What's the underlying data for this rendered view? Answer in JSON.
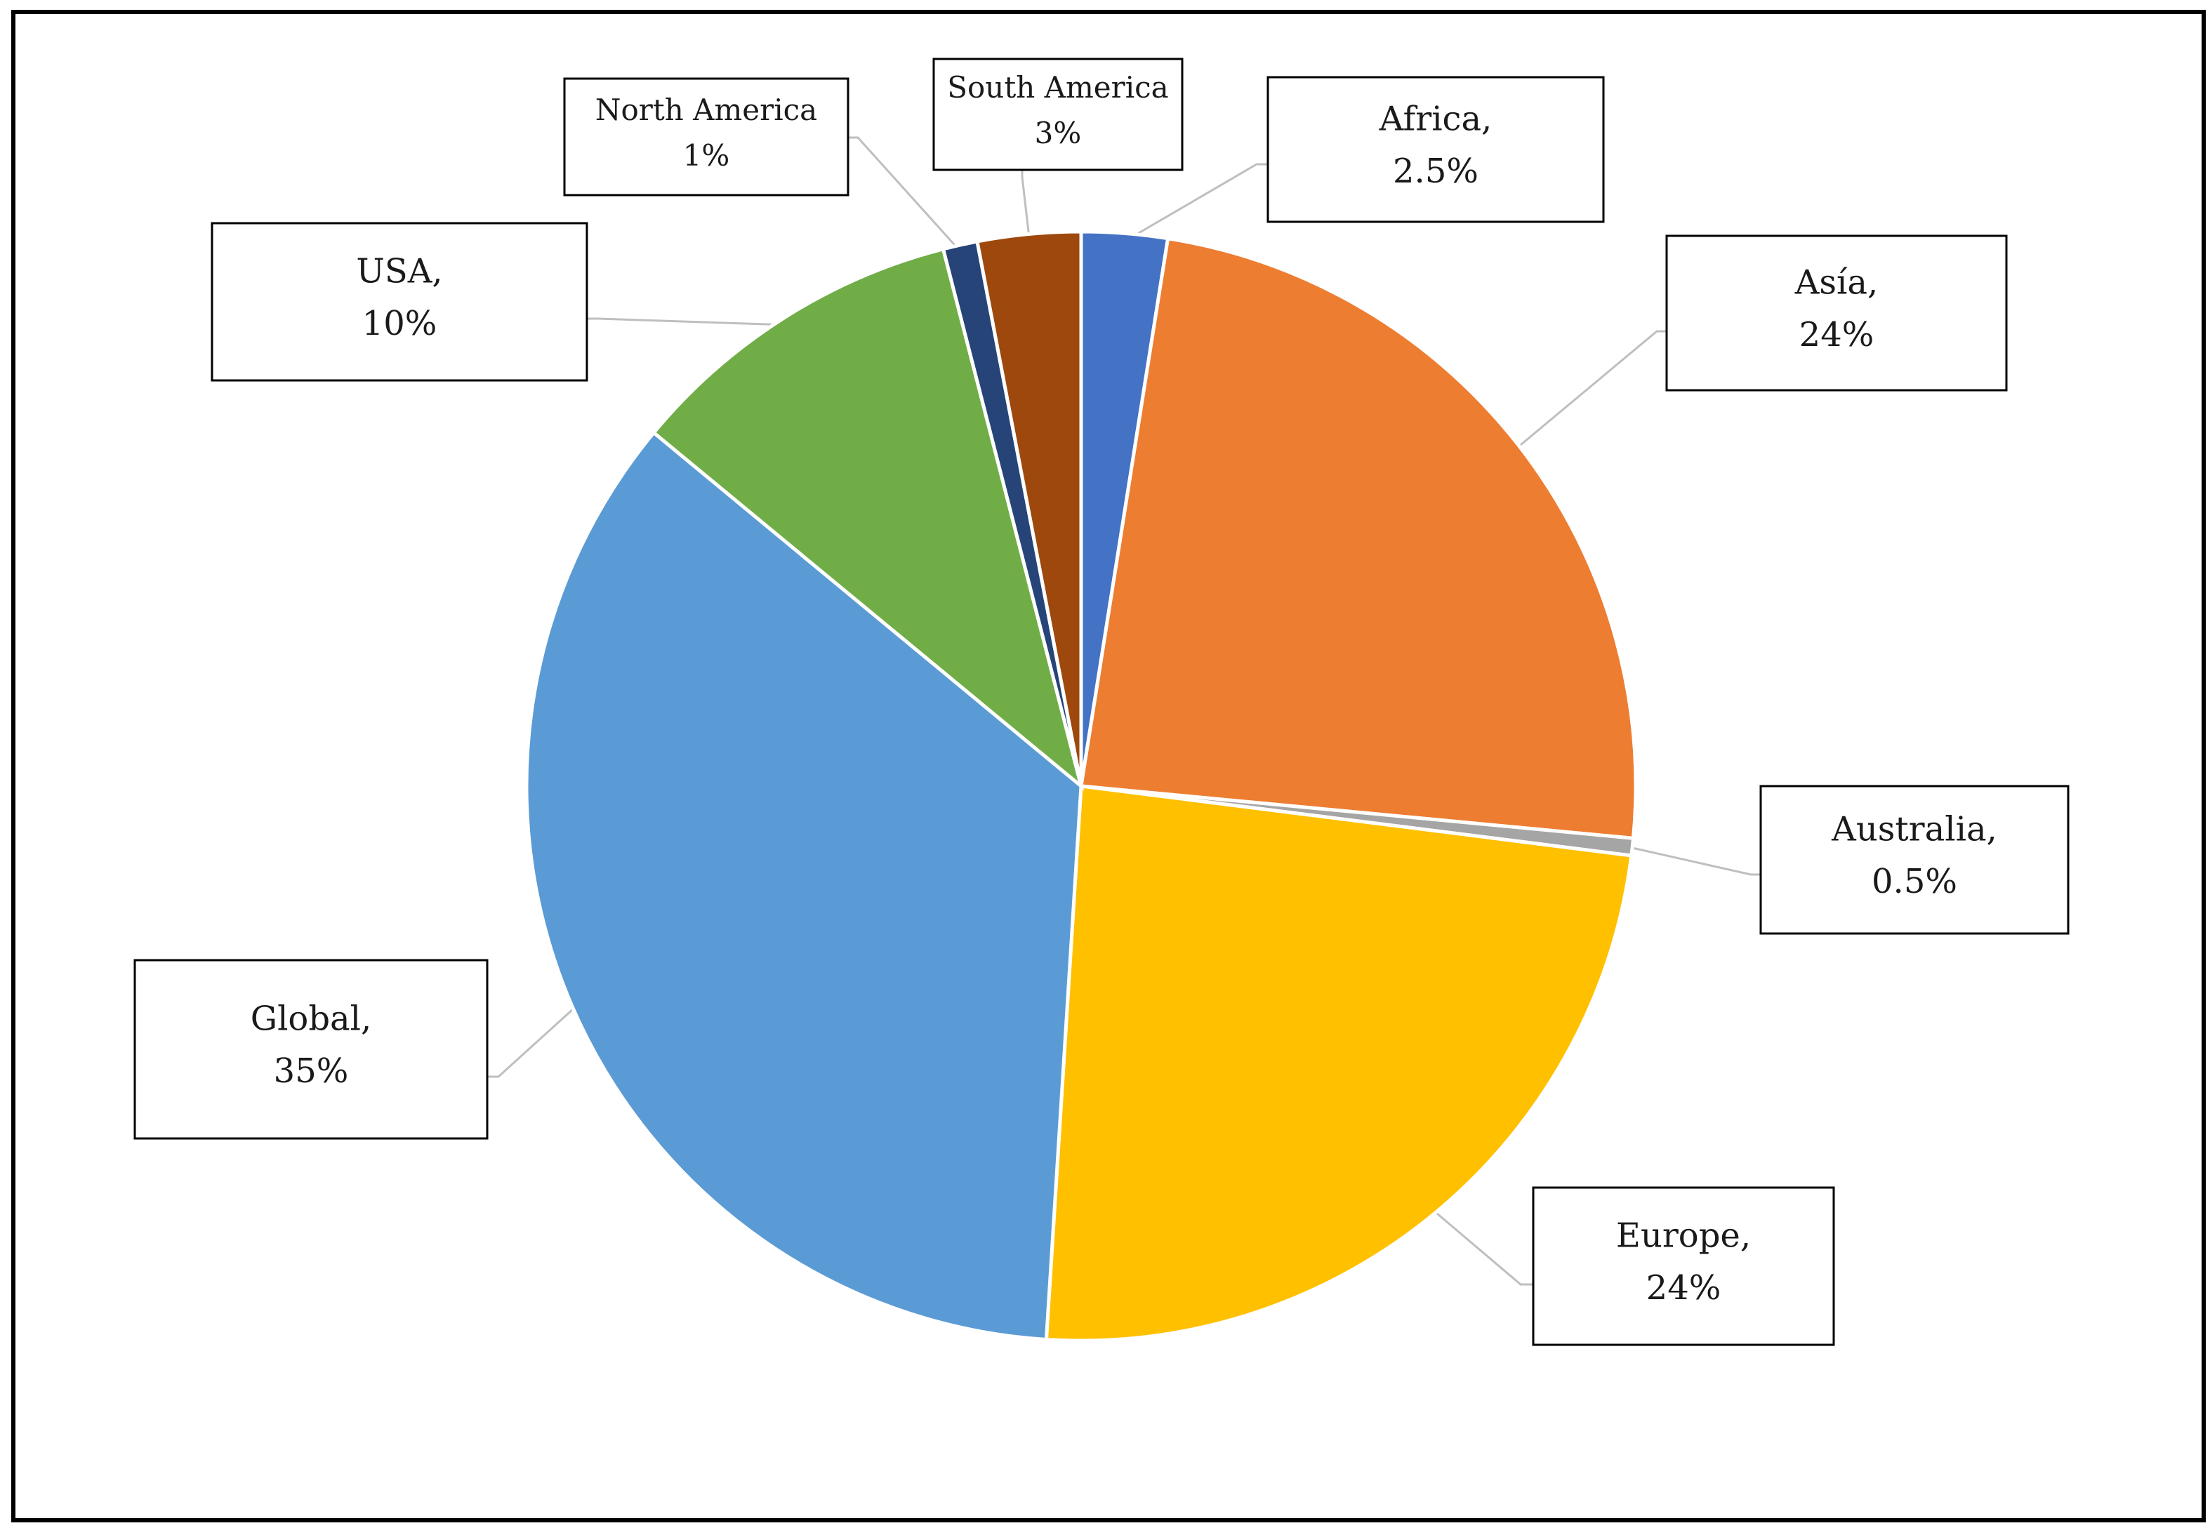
{
  "chart_data": {
    "type": "pie",
    "title": "",
    "slices": [
      {
        "label": "Africa,",
        "value": 2.5,
        "value_label": "2.5%",
        "color": "#4472C4"
      },
      {
        "label": "Asía,",
        "value": 24,
        "value_label": "24%",
        "color": "#ED7D31"
      },
      {
        "label": "Australia,",
        "value": 0.5,
        "value_label": "0.5%",
        "color": "#A5A5A5"
      },
      {
        "label": "Europe,",
        "value": 24,
        "value_label": "24%",
        "color": "#FFC000"
      },
      {
        "label": "Global,",
        "value": 35,
        "value_label": "35%",
        "color": "#5B9BD5"
      },
      {
        "label": "USA,",
        "value": 10,
        "value_label": "10%",
        "color": "#70AD47"
      },
      {
        "label": "North America",
        "value": 1,
        "value_label": "1%",
        "color": "#264478"
      },
      {
        "label": "South America",
        "value": 3,
        "value_label": "3%",
        "color": "#9E480E"
      }
    ],
    "start_angle": "12 o'clock",
    "direction": "clockwise",
    "legend": "none",
    "data_labels": "callout boxes with leader lines"
  }
}
